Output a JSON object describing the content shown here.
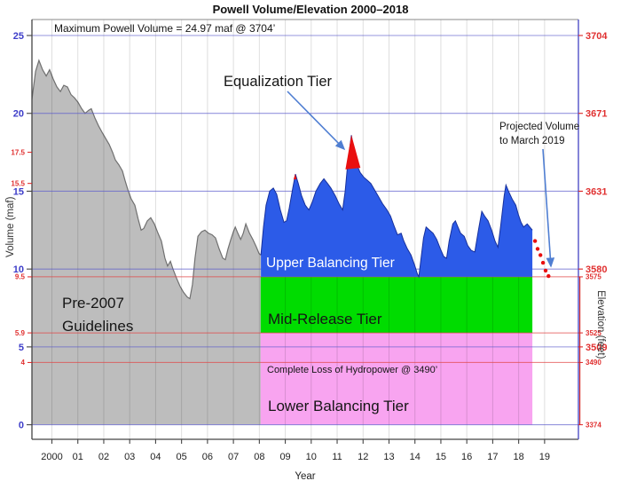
{
  "title": "Powell Volume/Elevation 2000–2018",
  "annotations": {
    "max_volume": "Maximum Powell Volume = 24.97 maf @ 3704’",
    "equalization": "Equalization Tier",
    "projected_line1": "Projected Volume",
    "projected_line2": "to March 2019",
    "pre2007_line1": "Pre-2007",
    "pre2007_line2": "Guidelines",
    "upper_tier": "Upper Balancing Tier",
    "mid_tier": "Mid-Release Tier",
    "hydropower": "Complete Loss of Hydropower @ 3490’",
    "lower_tier": "Lower Balancing Tier"
  },
  "axes": {
    "left_label": "Volume (maf)",
    "right_label": "Elevation (feet)",
    "x_label": "Year",
    "x_tick_labels": [
      "2000",
      "01",
      "02",
      "03",
      "04",
      "05",
      "06",
      "07",
      "08",
      "09",
      "10",
      "11",
      "12",
      "13",
      "14",
      "15",
      "16",
      "17",
      "18",
      "19"
    ],
    "x_tick_years": [
      2000,
      2001,
      2002,
      2003,
      2004,
      2005,
      2006,
      2007,
      2008,
      2009,
      2010,
      2011,
      2012,
      2013,
      2014,
      2015,
      2016,
      2017,
      2018,
      2019
    ],
    "left_major_ticks": [
      0,
      5,
      10,
      15,
      20,
      25
    ],
    "left_minor_ticks": [
      4,
      5.9,
      9.5,
      15.5,
      17.5
    ],
    "right_major_labels": [
      [
        25,
        "3704"
      ],
      [
        20,
        "3671"
      ],
      [
        15,
        "3631"
      ],
      [
        10,
        "3580"
      ],
      [
        5,
        "3509"
      ]
    ],
    "right_minor_labels": [
      [
        9.5,
        "3575"
      ],
      [
        5.9,
        "3525"
      ],
      [
        4,
        "3490"
      ],
      [
        0,
        "3374"
      ]
    ]
  },
  "colors": {
    "gray_fill": "#bdbdbd",
    "gray_edge": "#707070",
    "blue_fill": "#2c5be8",
    "blue_edge": "#16309c",
    "red": "#e90f0f",
    "green_band": "#00dc00",
    "pink_band": "#f8a4f0",
    "blue_grid": "rgba(90,90,205,0.65)",
    "red_grid": "rgba(225,70,70,0.75)",
    "vert_grid": "rgba(0,0,0,0.13)",
    "left_major_label": "#3d3dc9",
    "minor_label": "#e03030",
    "arrow": "#4f7ed2",
    "frame": "#555555",
    "right_axis": "#5050c8"
  },
  "chart_data": {
    "type": "area",
    "title": "Powell Volume/Elevation 2000-2018",
    "xlabel": "Year",
    "ylabel_left": "Volume (maf)",
    "ylabel_right": "Elevation (feet)",
    "x_range": [
      1999.2,
      2020.3
    ],
    "y_range_maf": [
      0,
      26
    ],
    "grid": {
      "blue_lines_maf": [
        0,
        5,
        10,
        15,
        20,
        25
      ],
      "red_lines_maf": [
        4,
        5.9,
        9.5
      ]
    },
    "legend_position": "none",
    "bands": [
      {
        "name": "Mid-Release Tier",
        "color": "#00dc00",
        "maf_top": 9.5,
        "maf_bottom": 5.9,
        "year_start": 2008.05,
        "year_end": 2018.53
      },
      {
        "name": "Lower Balancing Tier",
        "color": "#f8a4f0",
        "maf_top": 5.9,
        "maf_bottom": 0,
        "year_start": 2008.05,
        "year_end": 2018.53
      }
    ],
    "series": [
      {
        "name": "Pre-2007 Guidelines volume",
        "style": "area",
        "color": "#bdbdbd",
        "points": [
          [
            1999.23,
            20.9
          ],
          [
            1999.37,
            22.7
          ],
          [
            1999.5,
            23.4
          ],
          [
            1999.64,
            22.8
          ],
          [
            1999.78,
            22.4
          ],
          [
            1999.91,
            22.8
          ],
          [
            2000.05,
            22.2
          ],
          [
            2000.19,
            21.7
          ],
          [
            2000.33,
            21.4
          ],
          [
            2000.46,
            21.8
          ],
          [
            2000.6,
            21.7
          ],
          [
            2000.74,
            21.2
          ],
          [
            2000.87,
            21.0
          ],
          [
            2001.01,
            20.7
          ],
          [
            2001.15,
            20.3
          ],
          [
            2001.28,
            20.0
          ],
          [
            2001.42,
            20.2
          ],
          [
            2001.52,
            20.3
          ],
          [
            2001.66,
            19.7
          ],
          [
            2001.8,
            19.2
          ],
          [
            2001.93,
            18.8
          ],
          [
            2002.07,
            18.4
          ],
          [
            2002.21,
            18.0
          ],
          [
            2002.34,
            17.5
          ],
          [
            2002.45,
            17.0
          ],
          [
            2002.58,
            16.7
          ],
          [
            2002.72,
            16.3
          ],
          [
            2002.82,
            15.7
          ],
          [
            2002.93,
            15.1
          ],
          [
            2003.06,
            14.5
          ],
          [
            2003.2,
            14.1
          ],
          [
            2003.33,
            13.2
          ],
          [
            2003.44,
            12.5
          ],
          [
            2003.54,
            12.6
          ],
          [
            2003.68,
            13.1
          ],
          [
            2003.81,
            13.3
          ],
          [
            2003.95,
            12.9
          ],
          [
            2004.09,
            12.3
          ],
          [
            2004.22,
            11.8
          ],
          [
            2004.36,
            10.7
          ],
          [
            2004.46,
            10.2
          ],
          [
            2004.57,
            10.5
          ],
          [
            2004.67,
            10.0
          ],
          [
            2004.81,
            9.4
          ],
          [
            2004.94,
            8.9
          ],
          [
            2005.08,
            8.5
          ],
          [
            2005.22,
            8.2
          ],
          [
            2005.32,
            8.1
          ],
          [
            2005.42,
            9.0
          ],
          [
            2005.52,
            10.7
          ],
          [
            2005.63,
            12.1
          ],
          [
            2005.77,
            12.4
          ],
          [
            2005.9,
            12.5
          ],
          [
            2006.04,
            12.3
          ],
          [
            2006.18,
            12.2
          ],
          [
            2006.31,
            12.0
          ],
          [
            2006.45,
            11.3
          ],
          [
            2006.59,
            10.7
          ],
          [
            2006.69,
            10.6
          ],
          [
            2006.79,
            11.3
          ],
          [
            2006.9,
            11.9
          ],
          [
            2007.0,
            12.4
          ],
          [
            2007.07,
            12.7
          ],
          [
            2007.17,
            12.3
          ],
          [
            2007.28,
            11.9
          ],
          [
            2007.38,
            12.3
          ],
          [
            2007.48,
            12.9
          ],
          [
            2007.62,
            12.3
          ],
          [
            2007.75,
            11.9
          ],
          [
            2007.89,
            11.4
          ],
          [
            2007.99,
            11.0
          ],
          [
            2008.06,
            10.9
          ]
        ],
        "baseline_maf": 0
      },
      {
        "name": "2008-2018 volume",
        "style": "area",
        "color": "#2c5be8",
        "points": [
          [
            2008.06,
            10.9
          ],
          [
            2008.16,
            12.7
          ],
          [
            2008.26,
            14.1
          ],
          [
            2008.4,
            15.0
          ],
          [
            2008.54,
            15.2
          ],
          [
            2008.67,
            14.8
          ],
          [
            2008.81,
            13.8
          ],
          [
            2008.95,
            13.0
          ],
          [
            2009.05,
            13.1
          ],
          [
            2009.15,
            13.9
          ],
          [
            2009.29,
            15.2
          ],
          [
            2009.39,
            16.1
          ],
          [
            2009.5,
            15.5
          ],
          [
            2009.63,
            14.7
          ],
          [
            2009.77,
            14.1
          ],
          [
            2009.91,
            13.8
          ],
          [
            2010.04,
            14.3
          ],
          [
            2010.18,
            15.0
          ],
          [
            2010.35,
            15.5
          ],
          [
            2010.49,
            15.8
          ],
          [
            2010.63,
            15.5
          ],
          [
            2010.76,
            15.2
          ],
          [
            2010.93,
            14.7
          ],
          [
            2011.07,
            14.2
          ],
          [
            2011.21,
            13.8
          ],
          [
            2011.31,
            15.0
          ],
          [
            2011.41,
            16.8
          ],
          [
            2011.55,
            18.6
          ],
          [
            2011.65,
            17.6
          ],
          [
            2011.76,
            16.7
          ],
          [
            2011.89,
            16.2
          ],
          [
            2012.03,
            15.9
          ],
          [
            2012.17,
            15.7
          ],
          [
            2012.3,
            15.5
          ],
          [
            2012.44,
            15.1
          ],
          [
            2012.58,
            14.7
          ],
          [
            2012.75,
            14.2
          ],
          [
            2012.92,
            13.8
          ],
          [
            2013.06,
            13.4
          ],
          [
            2013.19,
            12.8
          ],
          [
            2013.33,
            12.2
          ],
          [
            2013.47,
            12.3
          ],
          [
            2013.57,
            11.8
          ],
          [
            2013.71,
            11.3
          ],
          [
            2013.85,
            10.9
          ],
          [
            2013.98,
            10.3
          ],
          [
            2014.09,
            9.7
          ],
          [
            2014.15,
            9.5
          ],
          [
            2014.22,
            10.5
          ],
          [
            2014.33,
            12.0
          ],
          [
            2014.43,
            12.7
          ],
          [
            2014.56,
            12.5
          ],
          [
            2014.7,
            12.3
          ],
          [
            2014.84,
            11.9
          ],
          [
            2014.98,
            11.3
          ],
          [
            2015.11,
            10.8
          ],
          [
            2015.22,
            10.7
          ],
          [
            2015.32,
            11.8
          ],
          [
            2015.46,
            12.9
          ],
          [
            2015.56,
            13.1
          ],
          [
            2015.66,
            12.7
          ],
          [
            2015.76,
            12.3
          ],
          [
            2015.9,
            12.1
          ],
          [
            2016.04,
            11.5
          ],
          [
            2016.17,
            11.2
          ],
          [
            2016.31,
            11.1
          ],
          [
            2016.45,
            12.5
          ],
          [
            2016.58,
            13.7
          ],
          [
            2016.69,
            13.4
          ],
          [
            2016.82,
            13.1
          ],
          [
            2016.96,
            12.5
          ],
          [
            2017.09,
            11.8
          ],
          [
            2017.2,
            11.4
          ],
          [
            2017.3,
            12.7
          ],
          [
            2017.44,
            14.7
          ],
          [
            2017.51,
            15.4
          ],
          [
            2017.61,
            15.0
          ],
          [
            2017.75,
            14.5
          ],
          [
            2017.89,
            14.1
          ],
          [
            2017.99,
            13.5
          ],
          [
            2018.09,
            13.0
          ],
          [
            2018.19,
            12.7
          ],
          [
            2018.33,
            12.9
          ],
          [
            2018.43,
            12.7
          ],
          [
            2018.53,
            12.5
          ]
        ],
        "baseline_maf": 9.5
      },
      {
        "name": "Equalization Tier exceedance",
        "style": "polygons",
        "color": "#e90f0f",
        "polygons": [
          [
            [
              2009.32,
              15.76
            ],
            [
              2009.38,
              16.1
            ],
            [
              2009.44,
              15.76
            ]
          ],
          [
            [
              2011.32,
              16.4
            ],
            [
              2011.55,
              18.61
            ],
            [
              2011.9,
              16.5
            ]
          ]
        ]
      },
      {
        "name": "Projected Volume to March 2019",
        "style": "dots",
        "color": "#e90f0f",
        "points": [
          [
            2018.63,
            11.8
          ],
          [
            2018.73,
            11.3
          ],
          [
            2018.84,
            10.9
          ],
          [
            2018.94,
            10.4
          ],
          [
            2019.04,
            9.9
          ],
          [
            2019.15,
            9.55
          ]
        ]
      }
    ],
    "reference_values": {
      "maximum_volume_maf": 24.97,
      "maximum_elevation_ft": 3704,
      "hydropower_loss_ft": 3490
    }
  }
}
